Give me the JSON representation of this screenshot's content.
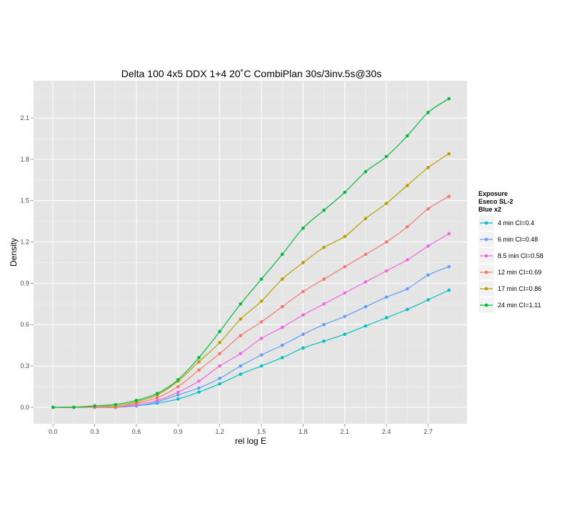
{
  "chart_data": {
    "type": "line",
    "title": "Delta 100 4x5 DDX 1+4 20˚C CombiPlan 30s/3inv.5s@30s",
    "xlabel": "rel log E",
    "ylabel": "Density",
    "xlim": [
      -0.14,
      2.98
    ],
    "ylim": [
      -0.12,
      2.37
    ],
    "xticks": [
      0.0,
      0.3,
      0.6,
      0.9,
      1.2,
      1.5,
      1.8,
      2.1,
      2.4,
      2.7
    ],
    "xtick_labels": [
      "0.0",
      "0.3",
      "0.6",
      "0.9",
      "1.2",
      "1.5",
      "1.8",
      "2.1",
      "2.4",
      "2.7"
    ],
    "yticks": [
      0.0,
      0.3,
      0.6,
      0.9,
      1.2,
      1.5,
      1.8,
      2.1
    ],
    "ytick_labels": [
      "0.0",
      "0.3",
      "0.6",
      "0.9",
      "1.2",
      "1.5",
      "1.8",
      "2.1"
    ],
    "grid": true,
    "legend": {
      "title_lines": [
        "Exposure",
        "Eseco SL-2",
        "Blue x2"
      ],
      "placement": "right"
    },
    "x": [
      0.0,
      0.15,
      0.3,
      0.45,
      0.6,
      0.75,
      0.9,
      1.05,
      1.2,
      1.35,
      1.5,
      1.65,
      1.8,
      1.95,
      2.1,
      2.25,
      2.4,
      2.55,
      2.7,
      2.85
    ],
    "series": [
      {
        "name": "4 min CI=0.4",
        "color": "#00BFC4",
        "values": [
          0.0,
          0.0,
          0.0,
          0.0,
          0.01,
          0.03,
          0.06,
          0.11,
          0.17,
          0.24,
          0.3,
          0.36,
          0.43,
          0.48,
          0.53,
          0.59,
          0.65,
          0.71,
          0.78,
          0.85
        ]
      },
      {
        "name": "6 min CI=0.48",
        "color": "#619CFF",
        "values": [
          0.0,
          0.0,
          0.0,
          0.0,
          0.01,
          0.04,
          0.09,
          0.14,
          0.21,
          0.3,
          0.38,
          0.45,
          0.53,
          0.6,
          0.66,
          0.73,
          0.8,
          0.86,
          0.96,
          1.02
        ]
      },
      {
        "name": "8.5 min CI=0.58",
        "color": "#F564E3",
        "values": [
          0.0,
          0.0,
          0.0,
          0.0,
          0.02,
          0.05,
          0.11,
          0.19,
          0.3,
          0.39,
          0.5,
          0.58,
          0.67,
          0.75,
          0.83,
          0.91,
          0.99,
          1.07,
          1.17,
          1.26
        ]
      },
      {
        "name": "12 min CI=0.69",
        "color": "#F8766D",
        "values": [
          0.0,
          0.0,
          0.0,
          0.0,
          0.03,
          0.07,
          0.15,
          0.27,
          0.39,
          0.52,
          0.62,
          0.73,
          0.84,
          0.93,
          1.02,
          1.11,
          1.2,
          1.31,
          1.44,
          1.53
        ]
      },
      {
        "name": "17 min CI=0.86",
        "color": "#B79F00",
        "values": [
          0.0,
          0.0,
          0.01,
          0.01,
          0.04,
          0.09,
          0.19,
          0.33,
          0.47,
          0.64,
          0.77,
          0.93,
          1.05,
          1.16,
          1.24,
          1.37,
          1.48,
          1.61,
          1.74,
          1.84
        ]
      },
      {
        "name": "24 min CI=1.11",
        "color": "#00BA38",
        "values": [
          0.0,
          0.0,
          0.01,
          0.02,
          0.05,
          0.1,
          0.2,
          0.36,
          0.55,
          0.75,
          0.93,
          1.11,
          1.3,
          1.43,
          1.56,
          1.71,
          1.82,
          1.97,
          2.14,
          2.24
        ]
      }
    ]
  }
}
